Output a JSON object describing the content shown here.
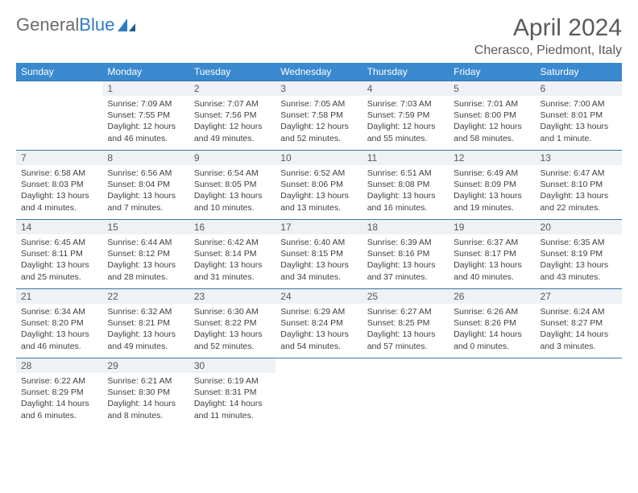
{
  "logo": {
    "text_general": "General",
    "text_blue": "Blue"
  },
  "title": "April 2024",
  "location": "Cherasco, Piedmont, Italy",
  "day_headers": [
    "Sunday",
    "Monday",
    "Tuesday",
    "Wednesday",
    "Thursday",
    "Friday",
    "Saturday"
  ],
  "colors": {
    "header_bg": "#3a89cf",
    "header_text": "#ffffff",
    "daynum_bg": "#eef2f5",
    "border": "#3a74a8",
    "logo_gray": "#6b6b6b",
    "logo_blue": "#2f7bc4"
  },
  "weeks": [
    [
      {
        "num": "",
        "sunrise": "",
        "sunset": "",
        "daylight1": "",
        "daylight2": ""
      },
      {
        "num": "1",
        "sunrise": "Sunrise: 7:09 AM",
        "sunset": "Sunset: 7:55 PM",
        "daylight1": "Daylight: 12 hours",
        "daylight2": "and 46 minutes."
      },
      {
        "num": "2",
        "sunrise": "Sunrise: 7:07 AM",
        "sunset": "Sunset: 7:56 PM",
        "daylight1": "Daylight: 12 hours",
        "daylight2": "and 49 minutes."
      },
      {
        "num": "3",
        "sunrise": "Sunrise: 7:05 AM",
        "sunset": "Sunset: 7:58 PM",
        "daylight1": "Daylight: 12 hours",
        "daylight2": "and 52 minutes."
      },
      {
        "num": "4",
        "sunrise": "Sunrise: 7:03 AM",
        "sunset": "Sunset: 7:59 PM",
        "daylight1": "Daylight: 12 hours",
        "daylight2": "and 55 minutes."
      },
      {
        "num": "5",
        "sunrise": "Sunrise: 7:01 AM",
        "sunset": "Sunset: 8:00 PM",
        "daylight1": "Daylight: 12 hours",
        "daylight2": "and 58 minutes."
      },
      {
        "num": "6",
        "sunrise": "Sunrise: 7:00 AM",
        "sunset": "Sunset: 8:01 PM",
        "daylight1": "Daylight: 13 hours",
        "daylight2": "and 1 minute."
      }
    ],
    [
      {
        "num": "7",
        "sunrise": "Sunrise: 6:58 AM",
        "sunset": "Sunset: 8:03 PM",
        "daylight1": "Daylight: 13 hours",
        "daylight2": "and 4 minutes."
      },
      {
        "num": "8",
        "sunrise": "Sunrise: 6:56 AM",
        "sunset": "Sunset: 8:04 PM",
        "daylight1": "Daylight: 13 hours",
        "daylight2": "and 7 minutes."
      },
      {
        "num": "9",
        "sunrise": "Sunrise: 6:54 AM",
        "sunset": "Sunset: 8:05 PM",
        "daylight1": "Daylight: 13 hours",
        "daylight2": "and 10 minutes."
      },
      {
        "num": "10",
        "sunrise": "Sunrise: 6:52 AM",
        "sunset": "Sunset: 8:06 PM",
        "daylight1": "Daylight: 13 hours",
        "daylight2": "and 13 minutes."
      },
      {
        "num": "11",
        "sunrise": "Sunrise: 6:51 AM",
        "sunset": "Sunset: 8:08 PM",
        "daylight1": "Daylight: 13 hours",
        "daylight2": "and 16 minutes."
      },
      {
        "num": "12",
        "sunrise": "Sunrise: 6:49 AM",
        "sunset": "Sunset: 8:09 PM",
        "daylight1": "Daylight: 13 hours",
        "daylight2": "and 19 minutes."
      },
      {
        "num": "13",
        "sunrise": "Sunrise: 6:47 AM",
        "sunset": "Sunset: 8:10 PM",
        "daylight1": "Daylight: 13 hours",
        "daylight2": "and 22 minutes."
      }
    ],
    [
      {
        "num": "14",
        "sunrise": "Sunrise: 6:45 AM",
        "sunset": "Sunset: 8:11 PM",
        "daylight1": "Daylight: 13 hours",
        "daylight2": "and 25 minutes."
      },
      {
        "num": "15",
        "sunrise": "Sunrise: 6:44 AM",
        "sunset": "Sunset: 8:12 PM",
        "daylight1": "Daylight: 13 hours",
        "daylight2": "and 28 minutes."
      },
      {
        "num": "16",
        "sunrise": "Sunrise: 6:42 AM",
        "sunset": "Sunset: 8:14 PM",
        "daylight1": "Daylight: 13 hours",
        "daylight2": "and 31 minutes."
      },
      {
        "num": "17",
        "sunrise": "Sunrise: 6:40 AM",
        "sunset": "Sunset: 8:15 PM",
        "daylight1": "Daylight: 13 hours",
        "daylight2": "and 34 minutes."
      },
      {
        "num": "18",
        "sunrise": "Sunrise: 6:39 AM",
        "sunset": "Sunset: 8:16 PM",
        "daylight1": "Daylight: 13 hours",
        "daylight2": "and 37 minutes."
      },
      {
        "num": "19",
        "sunrise": "Sunrise: 6:37 AM",
        "sunset": "Sunset: 8:17 PM",
        "daylight1": "Daylight: 13 hours",
        "daylight2": "and 40 minutes."
      },
      {
        "num": "20",
        "sunrise": "Sunrise: 6:35 AM",
        "sunset": "Sunset: 8:19 PM",
        "daylight1": "Daylight: 13 hours",
        "daylight2": "and 43 minutes."
      }
    ],
    [
      {
        "num": "21",
        "sunrise": "Sunrise: 6:34 AM",
        "sunset": "Sunset: 8:20 PM",
        "daylight1": "Daylight: 13 hours",
        "daylight2": "and 46 minutes."
      },
      {
        "num": "22",
        "sunrise": "Sunrise: 6:32 AM",
        "sunset": "Sunset: 8:21 PM",
        "daylight1": "Daylight: 13 hours",
        "daylight2": "and 49 minutes."
      },
      {
        "num": "23",
        "sunrise": "Sunrise: 6:30 AM",
        "sunset": "Sunset: 8:22 PM",
        "daylight1": "Daylight: 13 hours",
        "daylight2": "and 52 minutes."
      },
      {
        "num": "24",
        "sunrise": "Sunrise: 6:29 AM",
        "sunset": "Sunset: 8:24 PM",
        "daylight1": "Daylight: 13 hours",
        "daylight2": "and 54 minutes."
      },
      {
        "num": "25",
        "sunrise": "Sunrise: 6:27 AM",
        "sunset": "Sunset: 8:25 PM",
        "daylight1": "Daylight: 13 hours",
        "daylight2": "and 57 minutes."
      },
      {
        "num": "26",
        "sunrise": "Sunrise: 6:26 AM",
        "sunset": "Sunset: 8:26 PM",
        "daylight1": "Daylight: 14 hours",
        "daylight2": "and 0 minutes."
      },
      {
        "num": "27",
        "sunrise": "Sunrise: 6:24 AM",
        "sunset": "Sunset: 8:27 PM",
        "daylight1": "Daylight: 14 hours",
        "daylight2": "and 3 minutes."
      }
    ],
    [
      {
        "num": "28",
        "sunrise": "Sunrise: 6:22 AM",
        "sunset": "Sunset: 8:29 PM",
        "daylight1": "Daylight: 14 hours",
        "daylight2": "and 6 minutes."
      },
      {
        "num": "29",
        "sunrise": "Sunrise: 6:21 AM",
        "sunset": "Sunset: 8:30 PM",
        "daylight1": "Daylight: 14 hours",
        "daylight2": "and 8 minutes."
      },
      {
        "num": "30",
        "sunrise": "Sunrise: 6:19 AM",
        "sunset": "Sunset: 8:31 PM",
        "daylight1": "Daylight: 14 hours",
        "daylight2": "and 11 minutes."
      },
      {
        "num": "",
        "sunrise": "",
        "sunset": "",
        "daylight1": "",
        "daylight2": ""
      },
      {
        "num": "",
        "sunrise": "",
        "sunset": "",
        "daylight1": "",
        "daylight2": ""
      },
      {
        "num": "",
        "sunrise": "",
        "sunset": "",
        "daylight1": "",
        "daylight2": ""
      },
      {
        "num": "",
        "sunrise": "",
        "sunset": "",
        "daylight1": "",
        "daylight2": ""
      }
    ]
  ]
}
